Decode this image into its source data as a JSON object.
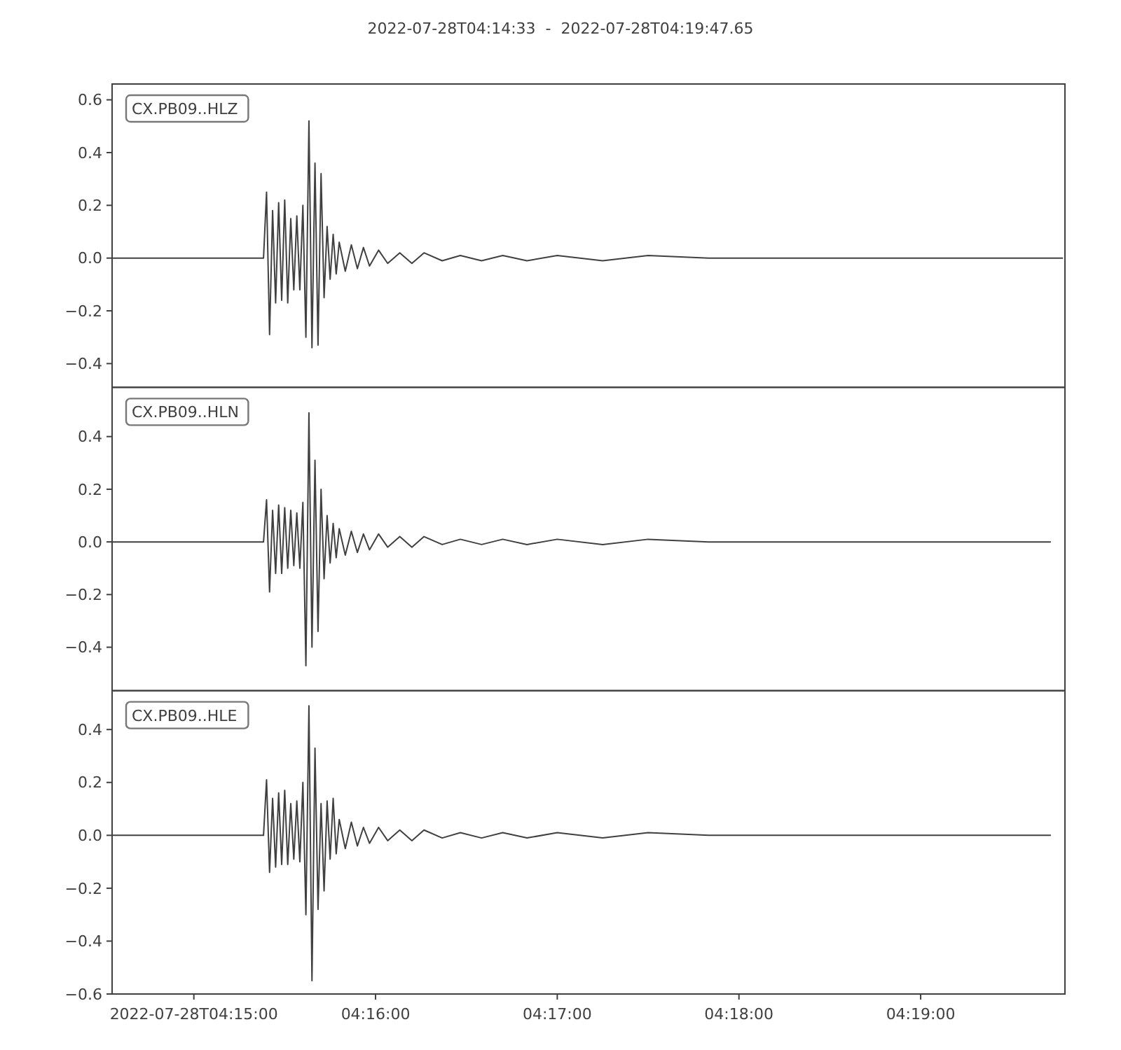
{
  "chart_data": [
    {
      "type": "line",
      "title": "2022-07-28T04:14:33  -  2022-07-28T04:19:47.65",
      "legend": "top left",
      "tick_labels": "y",
      "xlim": [
        "2022-07-28T04:14:33",
        "2022-07-28T04:19:47.65"
      ],
      "ylim": [
        -0.49,
        0.66
      ],
      "yticks": [
        {
          "value": -0.4,
          "label": "−0.4"
        },
        {
          "value": -0.2,
          "label": "−0.2"
        },
        {
          "value": 0,
          "label": "0.0"
        },
        {
          "value": 0.2,
          "label": "0.2"
        },
        {
          "value": 0.4,
          "label": "0.4"
        },
        {
          "value": 0.6,
          "label": "0.6"
        }
      ],
      "x": [
        "2022-07-28T04:14:33",
        "2022-07-28T04:15:23",
        "2022-07-28T04:15:24",
        "2022-07-28T04:15:25",
        "2022-07-28T04:15:26",
        "2022-07-28T04:15:27",
        "2022-07-28T04:15:28",
        "2022-07-28T04:15:29",
        "2022-07-28T04:15:30",
        "2022-07-28T04:15:31",
        "2022-07-28T04:15:32",
        "2022-07-28T04:15:33",
        "2022-07-28T04:15:34",
        "2022-07-28T04:15:35",
        "2022-07-28T04:15:36",
        "2022-07-28T04:15:37",
        "2022-07-28T04:15:38",
        "2022-07-28T04:15:39",
        "2022-07-28T04:15:40",
        "2022-07-28T04:15:41",
        "2022-07-28T04:15:42",
        "2022-07-28T04:15:43",
        "2022-07-28T04:15:44",
        "2022-07-28T04:15:45",
        "2022-07-28T04:15:46",
        "2022-07-28T04:15:47",
        "2022-07-28T04:15:48",
        "2022-07-28T04:15:50",
        "2022-07-28T04:15:52",
        "2022-07-28T04:15:54",
        "2022-07-28T04:15:56",
        "2022-07-28T04:15:58",
        "2022-07-28T04:16:01",
        "2022-07-28T04:16:04",
        "2022-07-28T04:16:08",
        "2022-07-28T04:16:12",
        "2022-07-28T04:16:16",
        "2022-07-28T04:16:22",
        "2022-07-28T04:16:28",
        "2022-07-28T04:16:35",
        "2022-07-28T04:16:42",
        "2022-07-28T04:16:50",
        "2022-07-28T04:17:00",
        "2022-07-28T04:17:15",
        "2022-07-28T04:17:30",
        "2022-07-28T04:17:50",
        "2022-07-28T04:18:10",
        "2022-07-28T04:18:30",
        "2022-07-28T04:18:50",
        "2022-07-28T04:19:10",
        "2022-07-28T04:19:30",
        "2022-07-28T04:19:47"
      ],
      "series": [
        {
          "name": "CX.PB09..HLZ",
          "color": "#404040",
          "values": [
            0,
            0,
            0.25,
            -0.29,
            0.18,
            -0.17,
            0.21,
            -0.16,
            0.22,
            -0.17,
            0.15,
            -0.12,
            0.16,
            -0.12,
            0.2,
            -0.3,
            0.52,
            -0.34,
            0.36,
            -0.33,
            0.32,
            -0.15,
            0.12,
            -0.08,
            0.09,
            -0.06,
            0.06,
            -0.05,
            0.05,
            -0.04,
            0.04,
            -0.03,
            0.03,
            -0.02,
            0.02,
            -0.02,
            0.02,
            -0.01,
            0.01,
            -0.01,
            0.01,
            -0.01,
            0.01,
            -0.01,
            0.01,
            0,
            0,
            0,
            0,
            0,
            0,
            0
          ]
        }
      ]
    },
    {
      "type": "line",
      "legend": "top left",
      "tick_labels": "y",
      "xlim": [
        "2022-07-28T04:14:33",
        "2022-07-28T04:19:47.65"
      ],
      "ylim": [
        -0.565,
        0.587
      ],
      "yticks": [
        {
          "value": -0.4,
          "label": "−0.4"
        },
        {
          "value": -0.2,
          "label": "−0.2"
        },
        {
          "value": 0,
          "label": "0.0"
        },
        {
          "value": 0.2,
          "label": "0.2"
        },
        {
          "value": 0.4,
          "label": "0.4"
        }
      ],
      "x": [
        "2022-07-28T04:14:33",
        "2022-07-28T04:15:23",
        "2022-07-28T04:15:24",
        "2022-07-28T04:15:25",
        "2022-07-28T04:15:26",
        "2022-07-28T04:15:27",
        "2022-07-28T04:15:28",
        "2022-07-28T04:15:29",
        "2022-07-28T04:15:30",
        "2022-07-28T04:15:31",
        "2022-07-28T04:15:32",
        "2022-07-28T04:15:33",
        "2022-07-28T04:15:34",
        "2022-07-28T04:15:35",
        "2022-07-28T04:15:36",
        "2022-07-28T04:15:37",
        "2022-07-28T04:15:38",
        "2022-07-28T04:15:39",
        "2022-07-28T04:15:40",
        "2022-07-28T04:15:41",
        "2022-07-28T04:15:42",
        "2022-07-28T04:15:43",
        "2022-07-28T04:15:44",
        "2022-07-28T04:15:45",
        "2022-07-28T04:15:46",
        "2022-07-28T04:15:47",
        "2022-07-28T04:15:48",
        "2022-07-28T04:15:50",
        "2022-07-28T04:15:52",
        "2022-07-28T04:15:54",
        "2022-07-28T04:15:56",
        "2022-07-28T04:15:58",
        "2022-07-28T04:16:01",
        "2022-07-28T04:16:04",
        "2022-07-28T04:16:08",
        "2022-07-28T04:16:12",
        "2022-07-28T04:16:16",
        "2022-07-28T04:16:22",
        "2022-07-28T04:16:28",
        "2022-07-28T04:16:35",
        "2022-07-28T04:16:42",
        "2022-07-28T04:16:50",
        "2022-07-28T04:17:00",
        "2022-07-28T04:17:15",
        "2022-07-28T04:17:30",
        "2022-07-28T04:17:50",
        "2022-07-28T04:18:10",
        "2022-07-28T04:18:30",
        "2022-07-28T04:18:50",
        "2022-07-28T04:19:10",
        "2022-07-28T04:19:30",
        "2022-07-28T04:19:43"
      ],
      "series": [
        {
          "name": "CX.PB09..HLN",
          "color": "#404040",
          "values": [
            0,
            0,
            0.16,
            -0.19,
            0.12,
            -0.12,
            0.14,
            -0.12,
            0.13,
            -0.1,
            0.12,
            -0.09,
            0.11,
            -0.1,
            0.15,
            -0.47,
            0.49,
            -0.4,
            0.31,
            -0.34,
            0.2,
            -0.14,
            0.1,
            -0.08,
            0.07,
            -0.06,
            0.05,
            -0.05,
            0.04,
            -0.04,
            0.03,
            -0.03,
            0.03,
            -0.02,
            0.02,
            -0.02,
            0.02,
            -0.01,
            0.01,
            -0.01,
            0.01,
            -0.01,
            0.01,
            -0.01,
            0.01,
            0,
            0,
            0,
            0,
            0,
            0,
            0
          ]
        }
      ]
    },
    {
      "type": "line",
      "legend": "top left",
      "xlim": [
        "2022-07-28T04:14:33",
        "2022-07-28T04:19:47.65"
      ],
      "xticks": [
        {
          "value": "2022-07-28T04:15:00",
          "label": "2022-07-28T04:15:00"
        },
        {
          "value": "2022-07-28T04:16:00",
          "label": "04:16:00"
        },
        {
          "value": "2022-07-28T04:17:00",
          "label": "04:17:00"
        },
        {
          "value": "2022-07-28T04:18:00",
          "label": "04:18:00"
        },
        {
          "value": "2022-07-28T04:19:00",
          "label": "04:19:00"
        }
      ],
      "ylim": [
        -0.6,
        0.547
      ],
      "yticks": [
        {
          "value": -0.6,
          "label": "−0.6"
        },
        {
          "value": -0.4,
          "label": "−0.4"
        },
        {
          "value": -0.2,
          "label": "−0.2"
        },
        {
          "value": 0,
          "label": "0.0"
        },
        {
          "value": 0.2,
          "label": "0.2"
        },
        {
          "value": 0.4,
          "label": "0.4"
        }
      ],
      "x": [
        "2022-07-28T04:14:33",
        "2022-07-28T04:15:23",
        "2022-07-28T04:15:24",
        "2022-07-28T04:15:25",
        "2022-07-28T04:15:26",
        "2022-07-28T04:15:27",
        "2022-07-28T04:15:28",
        "2022-07-28T04:15:29",
        "2022-07-28T04:15:30",
        "2022-07-28T04:15:31",
        "2022-07-28T04:15:32",
        "2022-07-28T04:15:33",
        "2022-07-28T04:15:34",
        "2022-07-28T04:15:35",
        "2022-07-28T04:15:36",
        "2022-07-28T04:15:37",
        "2022-07-28T04:15:38",
        "2022-07-28T04:15:39",
        "2022-07-28T04:15:40",
        "2022-07-28T04:15:41",
        "2022-07-28T04:15:42",
        "2022-07-28T04:15:43",
        "2022-07-28T04:15:44",
        "2022-07-28T04:15:45",
        "2022-07-28T04:15:46",
        "2022-07-28T04:15:47",
        "2022-07-28T04:15:48",
        "2022-07-28T04:15:50",
        "2022-07-28T04:15:52",
        "2022-07-28T04:15:54",
        "2022-07-28T04:15:56",
        "2022-07-28T04:15:58",
        "2022-07-28T04:16:01",
        "2022-07-28T04:16:04",
        "2022-07-28T04:16:08",
        "2022-07-28T04:16:12",
        "2022-07-28T04:16:16",
        "2022-07-28T04:16:22",
        "2022-07-28T04:16:28",
        "2022-07-28T04:16:35",
        "2022-07-28T04:16:42",
        "2022-07-28T04:16:50",
        "2022-07-28T04:17:00",
        "2022-07-28T04:17:15",
        "2022-07-28T04:17:30",
        "2022-07-28T04:17:50",
        "2022-07-28T04:18:10",
        "2022-07-28T04:18:30",
        "2022-07-28T04:18:50",
        "2022-07-28T04:19:10",
        "2022-07-28T04:19:30",
        "2022-07-28T04:19:43"
      ],
      "series": [
        {
          "name": "CX.PB09..HLE",
          "color": "#404040",
          "values": [
            0,
            0,
            0.21,
            -0.14,
            0.14,
            -0.12,
            0.16,
            -0.11,
            0.17,
            -0.11,
            0.12,
            -0.09,
            0.13,
            -0.1,
            0.2,
            -0.3,
            0.49,
            -0.55,
            0.33,
            -0.28,
            0.12,
            -0.21,
            0.13,
            -0.09,
            0.14,
            -0.07,
            0.06,
            -0.05,
            0.05,
            -0.04,
            0.03,
            -0.03,
            0.03,
            -0.02,
            0.02,
            -0.02,
            0.02,
            -0.01,
            0.01,
            -0.01,
            0.01,
            -0.01,
            0.01,
            -0.01,
            0.01,
            0,
            0,
            0,
            0,
            0,
            0,
            0
          ]
        }
      ]
    }
  ]
}
